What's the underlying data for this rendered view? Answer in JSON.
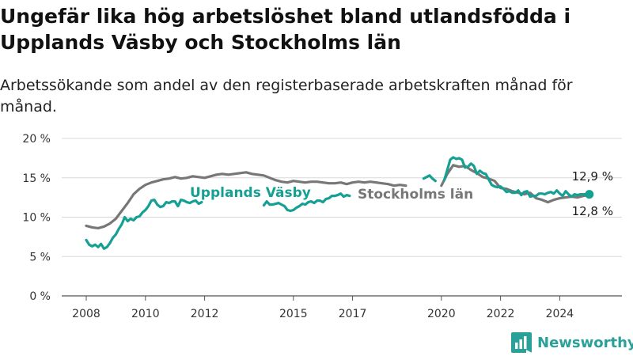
{
  "title": "Ungefär lika hög arbetslöshet bland utlandsfödda i Upplands Väsby och Stockholms län",
  "subtitle": "Arbetssökande som andel av den registerbaserade arbetskraften månad för månad.",
  "brand": {
    "name": "Newsworthy",
    "icon": "newsworthy-logo-icon"
  },
  "colors": {
    "vasby": "#16a093",
    "stockholm": "#777777",
    "grid": "#d8d8d8",
    "axis": "#555555"
  },
  "chart_data": {
    "type": "line",
    "title": "Ungefär lika hög arbetslöshet bland utlandsfödda i Upplands Väsby och Stockholms län",
    "subtitle": "Arbetssökande som andel av den registerbaserade arbetskraften månad för månad.",
    "xlim": [
      2008,
      2025
    ],
    "ylim": [
      0,
      20
    ],
    "yunit": "%",
    "yticks": [
      0,
      5,
      10,
      15,
      20
    ],
    "y_tick_labels": [
      "0 %",
      "5 %",
      "10 %",
      "15 %",
      "20 %"
    ],
    "xticks": [
      2008,
      2010,
      2012,
      2015,
      2017,
      2020,
      2022,
      2024
    ],
    "x_tick_labels": [
      "2008",
      "2010",
      "2012",
      "2015",
      "2017",
      "2020",
      "2022",
      "2024"
    ],
    "grid": "horizontal",
    "legend": "inline labels",
    "series": [
      {
        "name": "Upplands Väsby",
        "color": "#16a093",
        "segments": [
          {
            "x": [
              2008.0,
              2008.1,
              2008.2,
              2008.3,
              2008.4,
              2008.5,
              2008.6,
              2008.7,
              2008.8,
              2008.9,
              2009.0,
              2009.1,
              2009.2,
              2009.3,
              2009.4,
              2009.5,
              2009.6,
              2009.7,
              2009.8,
              2009.9,
              2010.0,
              2010.1,
              2010.2,
              2010.3,
              2010.4,
              2010.5,
              2010.6,
              2010.7,
              2010.8,
              2010.9,
              2011.0,
              2011.1,
              2011.2,
              2011.3,
              2011.4,
              2011.5,
              2011.6,
              2011.7,
              2011.8,
              2011.9
            ],
            "y": [
              7.1,
              6.5,
              6.3,
              6.5,
              6.2,
              6.6,
              6.0,
              6.2,
              6.7,
              7.4,
              7.8,
              8.5,
              9.1,
              10.0,
              9.5,
              9.8,
              9.6,
              10.0,
              10.1,
              10.6,
              10.9,
              11.4,
              12.1,
              12.2,
              11.6,
              11.3,
              11.4,
              11.9,
              11.8,
              12.0,
              12.0,
              11.4,
              12.2,
              12.1,
              11.9,
              11.8,
              12.0,
              12.1,
              11.7,
              11.9
            ]
          },
          {
            "x": [
              2014.0,
              2014.1,
              2014.2,
              2014.3,
              2014.4,
              2014.5,
              2014.6,
              2014.7,
              2014.8,
              2014.9,
              2015.0,
              2015.1,
              2015.2,
              2015.3,
              2015.4,
              2015.5,
              2015.6,
              2015.7,
              2015.8,
              2015.9,
              2016.0,
              2016.1,
              2016.2,
              2016.3,
              2016.4,
              2016.5,
              2016.6,
              2016.7,
              2016.8,
              2016.9
            ],
            "y": [
              11.5,
              12.0,
              11.6,
              11.6,
              11.7,
              11.8,
              11.6,
              11.4,
              10.9,
              10.8,
              10.9,
              11.2,
              11.4,
              11.7,
              11.6,
              11.9,
              12.0,
              11.8,
              12.1,
              12.1,
              11.9,
              12.3,
              12.4,
              12.7,
              12.7,
              12.8,
              13.0,
              12.6,
              12.8,
              12.7
            ]
          },
          {
            "x": [
              2019.4,
              2019.5,
              2019.6,
              2019.7,
              2019.8
            ],
            "y": [
              14.9,
              15.1,
              15.3,
              14.9,
              14.6
            ]
          },
          {
            "x": [
              2020.1,
              2020.2,
              2020.3,
              2020.4,
              2020.5,
              2020.6,
              2020.7,
              2020.8,
              2020.9,
              2021.0,
              2021.1,
              2021.2,
              2021.3,
              2021.4,
              2021.5,
              2021.6,
              2021.7,
              2021.8,
              2021.9,
              2022.0,
              2022.1,
              2022.2,
              2022.3,
              2022.4,
              2022.5,
              2022.6,
              2022.7,
              2022.8,
              2022.9,
              2023.0,
              2023.1,
              2023.2,
              2023.3,
              2023.4,
              2023.5,
              2023.6,
              2023.7,
              2023.8,
              2023.9,
              2024.0,
              2024.1,
              2024.2,
              2024.3,
              2024.4,
              2024.5,
              2024.6,
              2024.7,
              2024.8,
              2024.9,
              2025.0
            ],
            "y": [
              14.7,
              16.0,
              17.3,
              17.6,
              17.4,
              17.5,
              17.3,
              16.3,
              16.4,
              16.8,
              16.5,
              15.5,
              15.9,
              15.6,
              15.5,
              14.8,
              14.1,
              13.9,
              13.8,
              13.9,
              13.6,
              13.2,
              13.3,
              13.1,
              13.1,
              13.4,
              12.8,
              13.2,
              13.3,
              12.6,
              12.7,
              12.7,
              13.0,
              13.0,
              12.9,
              13.1,
              13.2,
              13.0,
              13.4,
              13.0,
              12.7,
              13.3,
              12.9,
              12.6,
              12.9,
              12.8,
              12.9,
              12.9,
              12.9,
              12.9
            ]
          }
        ],
        "last_value": 12.9,
        "last_value_label": "12,9 %"
      },
      {
        "name": "Stockholms län",
        "color": "#777777",
        "segments": [
          {
            "x": [
              2008.0,
              2008.2,
              2008.4,
              2008.6,
              2008.8,
              2009.0,
              2009.2,
              2009.4,
              2009.6,
              2009.8,
              2010.0,
              2010.2,
              2010.4,
              2010.6,
              2010.8,
              2011.0,
              2011.2,
              2011.4,
              2011.6,
              2011.8,
              2012.0,
              2012.2,
              2012.4,
              2012.6,
              2012.8,
              2013.0,
              2013.2,
              2013.4,
              2013.6,
              2013.8,
              2014.0,
              2014.2,
              2014.4,
              2014.6,
              2014.8,
              2015.0,
              2015.2,
              2015.4,
              2015.6,
              2015.8,
              2016.0,
              2016.2,
              2016.4,
              2016.6,
              2016.8,
              2017.0,
              2017.2,
              2017.4,
              2017.6,
              2017.8,
              2018.0,
              2018.2,
              2018.4,
              2018.6,
              2018.8
            ],
            "y": [
              8.9,
              8.7,
              8.6,
              8.8,
              9.2,
              9.8,
              10.8,
              11.8,
              12.9,
              13.6,
              14.1,
              14.4,
              14.6,
              14.8,
              14.9,
              15.1,
              14.9,
              15.0,
              15.2,
              15.1,
              15.0,
              15.2,
              15.4,
              15.5,
              15.4,
              15.5,
              15.6,
              15.7,
              15.5,
              15.4,
              15.3,
              15.0,
              14.7,
              14.5,
              14.4,
              14.6,
              14.5,
              14.4,
              14.5,
              14.5,
              14.4,
              14.3,
              14.3,
              14.4,
              14.2,
              14.4,
              14.5,
              14.4,
              14.5,
              14.4,
              14.3,
              14.2,
              14.0,
              14.1,
              14.0
            ]
          },
          {
            "x": [
              2020.0,
              2020.2,
              2020.4,
              2020.6,
              2020.8,
              2021.0,
              2021.2,
              2021.4,
              2021.6,
              2021.8,
              2022.0,
              2022.2,
              2022.4,
              2022.6,
              2022.8,
              2023.0,
              2023.2,
              2023.4,
              2023.6,
              2023.8,
              2024.0,
              2024.2,
              2024.4,
              2024.6,
              2024.8,
              2025.0
            ],
            "y": [
              14.0,
              15.5,
              16.6,
              16.4,
              16.5,
              16.0,
              15.6,
              15.1,
              14.9,
              14.6,
              13.7,
              13.6,
              13.3,
              13.1,
              12.9,
              13.1,
              12.4,
              12.2,
              11.9,
              12.2,
              12.4,
              12.5,
              12.6,
              12.5,
              12.7,
              12.8
            ]
          }
        ],
        "last_value": 12.8,
        "last_value_label": "12,8 %"
      }
    ]
  }
}
